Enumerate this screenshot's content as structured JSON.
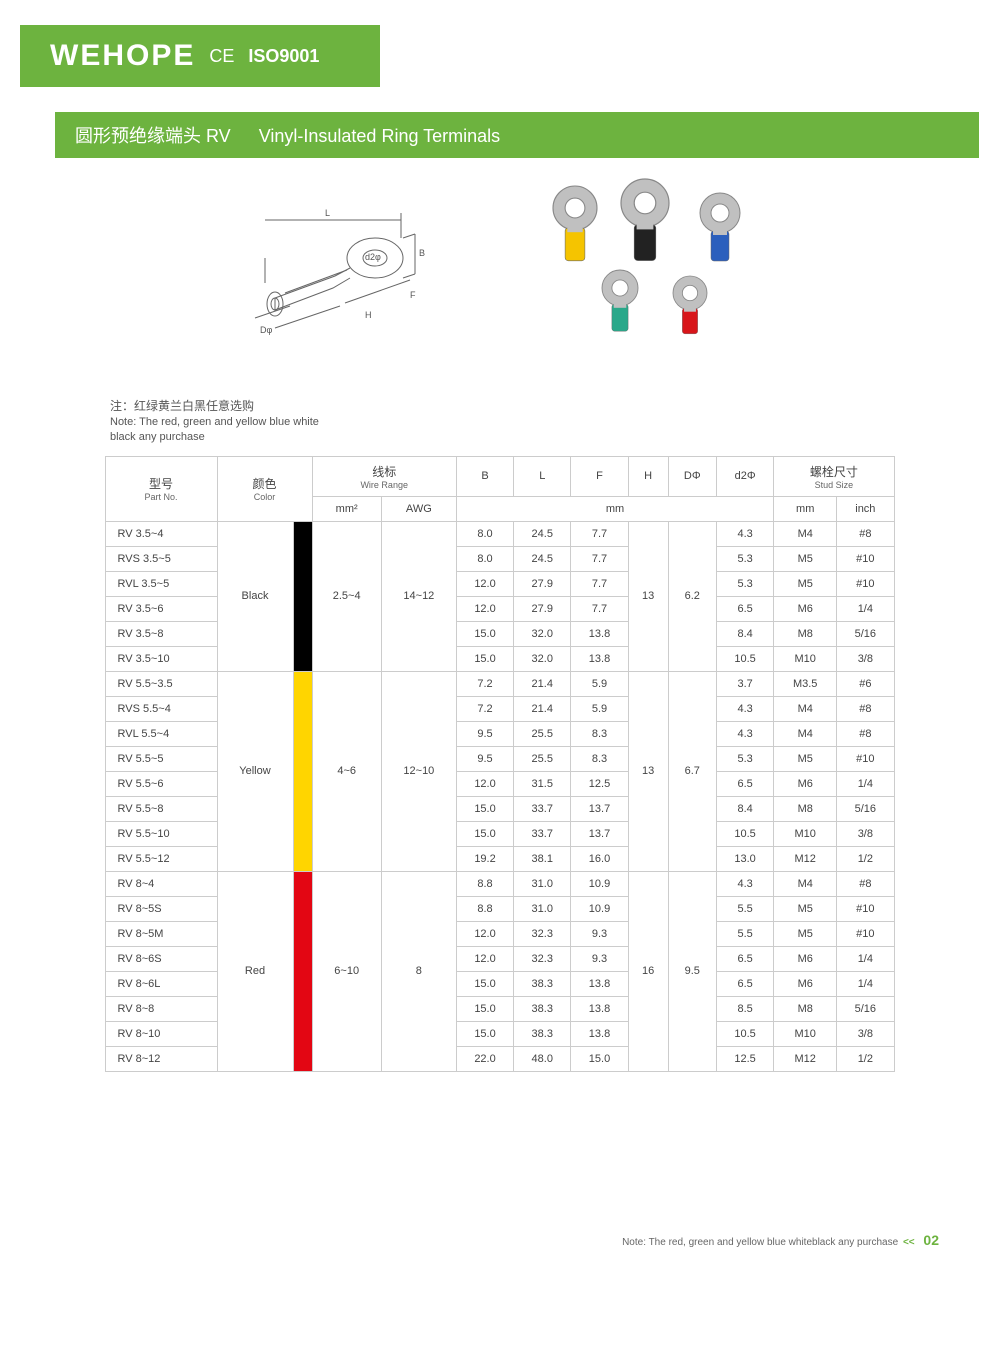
{
  "brand": "WEHOPE",
  "ce": "CE",
  "iso": "ISO9001",
  "title_cn": "圆形预绝缘端头 RV",
  "title_en": "Vinyl-Insulated Ring Terminals",
  "diagram": {
    "labels": {
      "B": "B",
      "L": "L",
      "d2": "d2φ",
      "F": "F",
      "H": "H",
      "D": "Dφ"
    }
  },
  "photo_colors": [
    "#f5c400",
    "#222",
    "#2b5fbd",
    "#2aa88a",
    "#d8151a"
  ],
  "note_cn": "注：红绿黄兰白黑任意选购",
  "note_en1": "Note: The red, green and yellow blue white",
  "note_en2": "black any purchase",
  "headers": {
    "partno_cn": "型号",
    "partno_en": "Part No.",
    "color_cn": "颜色",
    "color_en": "Color",
    "wire_cn": "线标",
    "wire_en": "Wire Range",
    "mm2": "mm²",
    "awg": "AWG",
    "B": "B",
    "L": "L",
    "F": "F",
    "H": "H",
    "D": "DΦ",
    "d2": "d2Φ",
    "mm": "mm",
    "stud_cn": "螺栓尺寸",
    "stud_en": "Stud Size",
    "stud_mm": "mm",
    "stud_inch": "inch"
  },
  "groups": [
    {
      "color_label": "Black",
      "swatch": "black",
      "mm2": "2.5~4",
      "awg": "14~12",
      "H": "13",
      "D": "6.2",
      "rows": [
        {
          "pn": "RV 3.5~4",
          "B": "8.0",
          "L": "24.5",
          "F": "7.7",
          "d2": "4.3",
          "sm": "M4",
          "si": "#8"
        },
        {
          "pn": "RVS 3.5~5",
          "B": "8.0",
          "L": "24.5",
          "F": "7.7",
          "d2": "5.3",
          "sm": "M5",
          "si": "#10"
        },
        {
          "pn": "RVL 3.5~5",
          "B": "12.0",
          "L": "27.9",
          "F": "7.7",
          "d2": "5.3",
          "sm": "M5",
          "si": "#10"
        },
        {
          "pn": "RV 3.5~6",
          "B": "12.0",
          "L": "27.9",
          "F": "7.7",
          "d2": "6.5",
          "sm": "M6",
          "si": "1/4"
        },
        {
          "pn": "RV 3.5~8",
          "B": "15.0",
          "L": "32.0",
          "F": "13.8",
          "d2": "8.4",
          "sm": "M8",
          "si": "5/16"
        },
        {
          "pn": "RV 3.5~10",
          "B": "15.0",
          "L": "32.0",
          "F": "13.8",
          "d2": "10.5",
          "sm": "M10",
          "si": "3/8"
        }
      ]
    },
    {
      "color_label": "Yellow",
      "swatch": "yellow",
      "mm2": "4~6",
      "awg": "12~10",
      "H": "13",
      "D": "6.7",
      "rows": [
        {
          "pn": "RV 5.5~3.5",
          "B": "7.2",
          "L": "21.4",
          "F": "5.9",
          "d2": "3.7",
          "sm": "M3.5",
          "si": "#6"
        },
        {
          "pn": "RVS 5.5~4",
          "B": "7.2",
          "L": "21.4",
          "F": "5.9",
          "d2": "4.3",
          "sm": "M4",
          "si": "#8"
        },
        {
          "pn": "RVL 5.5~4",
          "B": "9.5",
          "L": "25.5",
          "F": "8.3",
          "d2": "4.3",
          "sm": "M4",
          "si": "#8"
        },
        {
          "pn": "RV 5.5~5",
          "B": "9.5",
          "L": "25.5",
          "F": "8.3",
          "d2": "5.3",
          "sm": "M5",
          "si": "#10"
        },
        {
          "pn": "RV 5.5~6",
          "B": "12.0",
          "L": "31.5",
          "F": "12.5",
          "d2": "6.5",
          "sm": "M6",
          "si": "1/4"
        },
        {
          "pn": "RV 5.5~8",
          "B": "15.0",
          "L": "33.7",
          "F": "13.7",
          "d2": "8.4",
          "sm": "M8",
          "si": "5/16"
        },
        {
          "pn": "RV 5.5~10",
          "B": "15.0",
          "L": "33.7",
          "F": "13.7",
          "d2": "10.5",
          "sm": "M10",
          "si": "3/8"
        },
        {
          "pn": "RV 5.5~12",
          "B": "19.2",
          "L": "38.1",
          "F": "16.0",
          "d2": "13.0",
          "sm": "M12",
          "si": "1/2"
        }
      ]
    },
    {
      "color_label": "Red",
      "swatch": "red",
      "mm2": "6~10",
      "awg": "8",
      "H": "16",
      "D": "9.5",
      "rows": [
        {
          "pn": "RV 8~4",
          "B": "8.8",
          "L": "31.0",
          "F": "10.9",
          "d2": "4.3",
          "sm": "M4",
          "si": "#8"
        },
        {
          "pn": "RV 8~5S",
          "B": "8.8",
          "L": "31.0",
          "F": "10.9",
          "d2": "5.5",
          "sm": "M5",
          "si": "#10"
        },
        {
          "pn": "RV 8~5M",
          "B": "12.0",
          "L": "32.3",
          "F": "9.3",
          "d2": "5.5",
          "sm": "M5",
          "si": "#10"
        },
        {
          "pn": "RV 8~6S",
          "B": "12.0",
          "L": "32.3",
          "F": "9.3",
          "d2": "6.5",
          "sm": "M6",
          "si": "1/4"
        },
        {
          "pn": "RV 8~6L",
          "B": "15.0",
          "L": "38.3",
          "F": "13.8",
          "d2": "6.5",
          "sm": "M6",
          "si": "1/4"
        },
        {
          "pn": "RV 8~8",
          "B": "15.0",
          "L": "38.3",
          "F": "13.8",
          "d2": "8.5",
          "sm": "M8",
          "si": "5/16"
        },
        {
          "pn": "RV 8~10",
          "B": "15.0",
          "L": "38.3",
          "F": "13.8",
          "d2": "10.5",
          "sm": "M10",
          "si": "3/8"
        },
        {
          "pn": "RV 8~12",
          "B": "22.0",
          "L": "48.0",
          "F": "15.0",
          "d2": "12.5",
          "sm": "M12",
          "si": "1/2"
        }
      ]
    }
  ],
  "footer_note": "Note: The red, green and yellow blue whiteblack any purchase",
  "page_num": "02"
}
